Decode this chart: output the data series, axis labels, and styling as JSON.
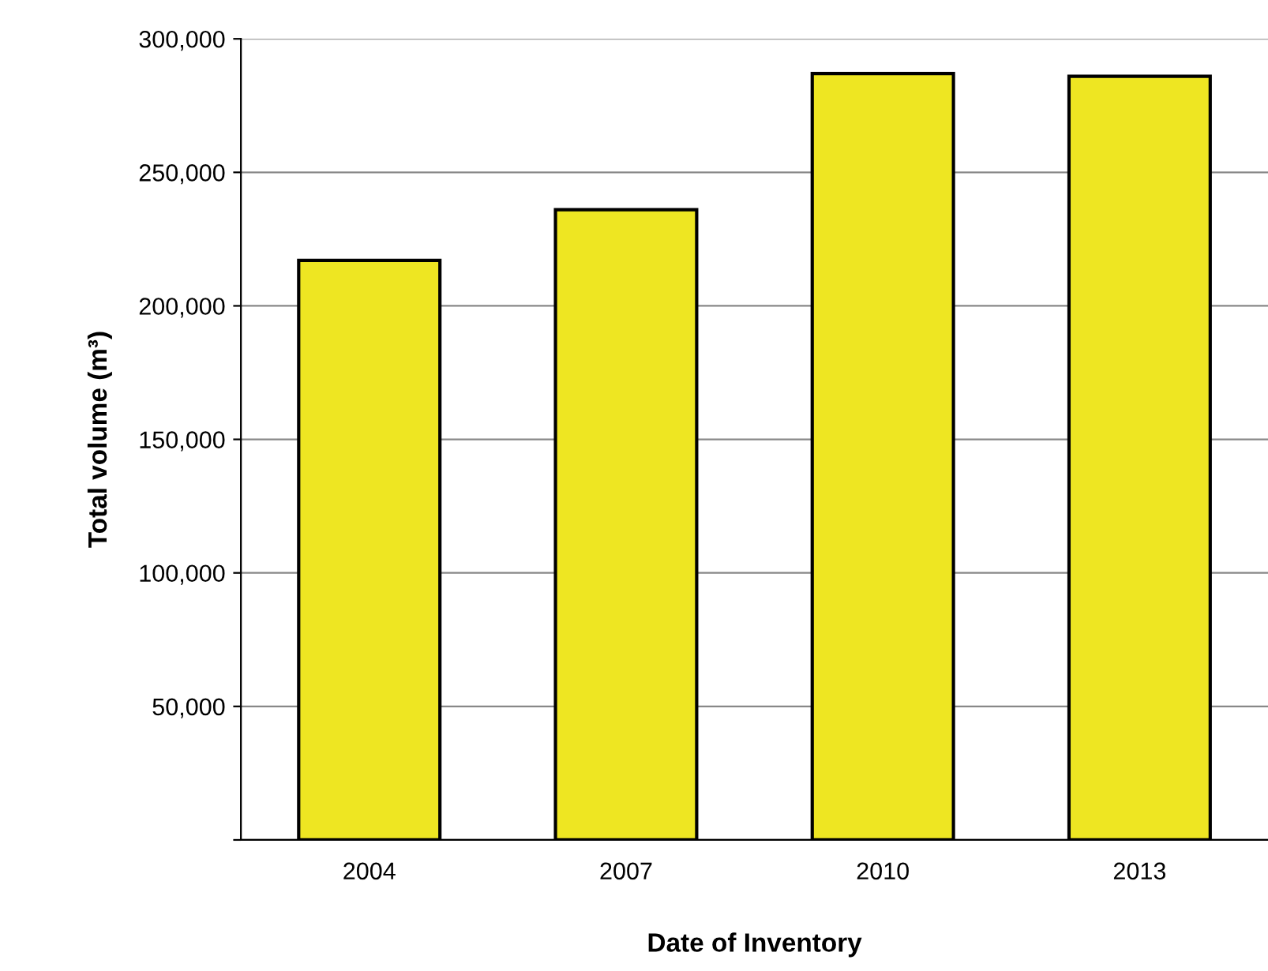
{
  "chart_data": {
    "type": "bar",
    "xlabel": "Date of Inventory",
    "ylabel": "Total volume (m³)",
    "categories": [
      "2004",
      "2007",
      "2010",
      "2013"
    ],
    "series": [
      {
        "color": "#eee622",
        "values": [
          217000,
          236000,
          287000,
          286000
        ]
      }
    ],
    "ylim": [
      0,
      300000
    ],
    "yticks": [
      {
        "value": 0,
        "label": null
      },
      {
        "value": 50000,
        "label": "50,000"
      },
      {
        "value": 100000,
        "label": "100,000"
      },
      {
        "value": 150000,
        "label": "150,000"
      },
      {
        "value": 200000,
        "label": "200,000"
      },
      {
        "value": 250000,
        "label": "250,000"
      },
      {
        "value": 300000,
        "label": "300,000"
      }
    ],
    "grid": "y"
  }
}
